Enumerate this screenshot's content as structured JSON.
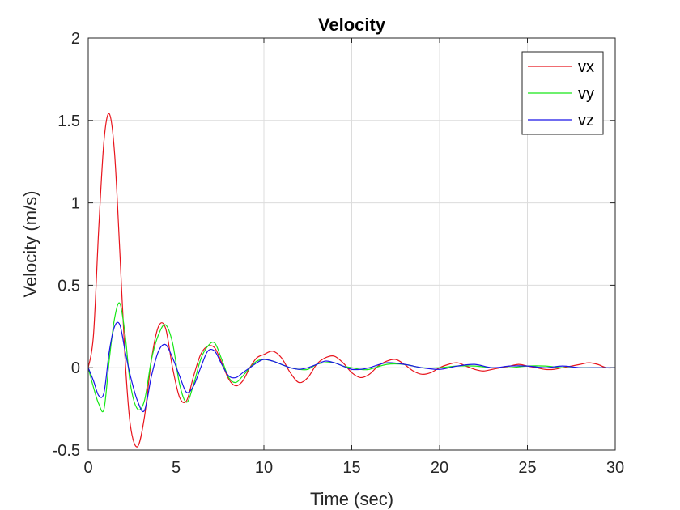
{
  "chart_data": {
    "type": "line",
    "title": "Velocity",
    "xlabel": "Time (sec)",
    "ylabel": "Velocity (m/s)",
    "xlim": [
      0,
      30
    ],
    "ylim": [
      -0.5,
      2
    ],
    "xticks": [
      0,
      5,
      10,
      15,
      20,
      25,
      30
    ],
    "xtick_labels": [
      "0",
      "5",
      "10",
      "15",
      "20",
      "25",
      "30"
    ],
    "yticks": [
      -0.5,
      0,
      0.5,
      1,
      1.5,
      2
    ],
    "ytick_labels": [
      "-0.5",
      "0",
      "0.5",
      "1",
      "1.5",
      "2"
    ],
    "grid": true,
    "legend_location": "top-right",
    "series": [
      {
        "name": "vx",
        "color": "#e8141c",
        "x": [
          0,
          0.3,
          0.6,
          0.9,
          1.2,
          1.5,
          1.8,
          2.1,
          2.4,
          2.8,
          3.2,
          3.6,
          4.0,
          4.4,
          4.8,
          5.2,
          5.6,
          6.0,
          6.4,
          6.8,
          7.2,
          7.6,
          8.0,
          8.4,
          8.8,
          9.2,
          9.6,
          10.0,
          10.5,
          11.0,
          11.5,
          12.0,
          12.5,
          13.0,
          13.5,
          14.0,
          14.5,
          15.0,
          15.5,
          16.0,
          16.5,
          17.0,
          17.5,
          18.0,
          18.5,
          19.0,
          19.5,
          20.0,
          20.5,
          21.0,
          21.5,
          22.0,
          22.5,
          23.0,
          23.5,
          24.0,
          24.5,
          25.0,
          25.5,
          26.0,
          26.5,
          27.0,
          27.5,
          28.0,
          28.5,
          29.0,
          29.5,
          30.0
        ],
        "y": [
          0,
          0.2,
          0.85,
          1.38,
          1.54,
          1.3,
          0.7,
          0.05,
          -0.35,
          -0.48,
          -0.3,
          0.05,
          0.25,
          0.24,
          0.0,
          -0.18,
          -0.2,
          -0.05,
          0.08,
          0.13,
          0.12,
          0.03,
          -0.07,
          -0.11,
          -0.08,
          0.0,
          0.06,
          0.08,
          0.1,
          0.06,
          -0.03,
          -0.09,
          -0.06,
          0.02,
          0.06,
          0.07,
          0.03,
          -0.03,
          -0.06,
          -0.04,
          0.01,
          0.04,
          0.05,
          0.02,
          -0.02,
          -0.04,
          -0.03,
          0.0,
          0.02,
          0.03,
          0.01,
          -0.01,
          -0.02,
          -0.01,
          0.0,
          0.01,
          0.02,
          0.01,
          0.0,
          -0.01,
          -0.01,
          0.0,
          0.01,
          0.02,
          0.03,
          0.02,
          0.0,
          0.0
        ]
      },
      {
        "name": "vy",
        "color": "#17e817",
        "x": [
          0,
          0.3,
          0.6,
          0.9,
          1.2,
          1.5,
          1.8,
          2.1,
          2.4,
          2.8,
          3.2,
          3.6,
          4.0,
          4.4,
          4.8,
          5.2,
          5.6,
          6.0,
          6.4,
          6.8,
          7.2,
          7.6,
          8.0,
          8.4,
          8.8,
          9.2,
          9.6,
          10.0,
          10.5,
          11.0,
          11.5,
          12.0,
          12.5,
          13.0,
          13.5,
          14.0,
          14.5,
          15.0,
          15.5,
          16.0,
          17.0,
          18.0,
          19.0,
          20.0,
          21.0,
          22.0,
          23.0,
          24.0,
          25.0,
          26.0,
          27.0,
          28.0,
          29.0,
          30.0
        ],
        "y": [
          0,
          -0.12,
          -0.22,
          -0.25,
          0.05,
          0.3,
          0.39,
          0.2,
          -0.1,
          -0.25,
          -0.2,
          0.05,
          0.2,
          0.26,
          0.15,
          -0.1,
          -0.21,
          -0.1,
          0.05,
          0.13,
          0.15,
          0.05,
          -0.06,
          -0.09,
          -0.05,
          0.0,
          0.04,
          0.05,
          0.04,
          0.02,
          0.0,
          -0.01,
          -0.01,
          0.02,
          0.03,
          0.03,
          0.01,
          0.0,
          -0.01,
          -0.01,
          0.02,
          0.02,
          0.0,
          0.0,
          0.01,
          0.01,
          0.0,
          0.0,
          0.01,
          0.01,
          0.0,
          0.0,
          0.0,
          0.0
        ]
      },
      {
        "name": "vz",
        "color": "#1a14e8",
        "x": [
          0,
          0.3,
          0.6,
          0.9,
          1.2,
          1.5,
          1.8,
          2.1,
          2.4,
          2.8,
          3.2,
          3.6,
          4.0,
          4.4,
          4.8,
          5.2,
          5.6,
          6.0,
          6.4,
          6.8,
          7.2,
          7.6,
          8.0,
          8.4,
          8.8,
          9.2,
          9.6,
          10.0,
          10.5,
          11.0,
          11.5,
          12.0,
          12.5,
          13.0,
          13.5,
          14.0,
          14.5,
          15.0,
          15.5,
          16.0,
          17.0,
          18.0,
          19.0,
          20.0,
          21.0,
          22.0,
          23.0,
          24.0,
          25.0,
          26.0,
          27.0,
          28.0,
          29.0,
          30.0
        ],
        "y": [
          0,
          -0.08,
          -0.17,
          -0.15,
          0.1,
          0.25,
          0.26,
          0.1,
          -0.05,
          -0.2,
          -0.26,
          -0.05,
          0.1,
          0.14,
          0.06,
          -0.05,
          -0.15,
          -0.11,
          0.0,
          0.1,
          0.1,
          0.02,
          -0.05,
          -0.06,
          -0.03,
          0.0,
          0.03,
          0.05,
          0.04,
          0.02,
          0.0,
          -0.01,
          0.0,
          0.02,
          0.04,
          0.03,
          0.01,
          -0.01,
          -0.01,
          0.0,
          0.03,
          0.02,
          0.0,
          -0.01,
          0.01,
          0.02,
          0.0,
          0.01,
          0.01,
          0.0,
          0.01,
          0.0,
          0.0,
          0.0
        ]
      }
    ]
  }
}
